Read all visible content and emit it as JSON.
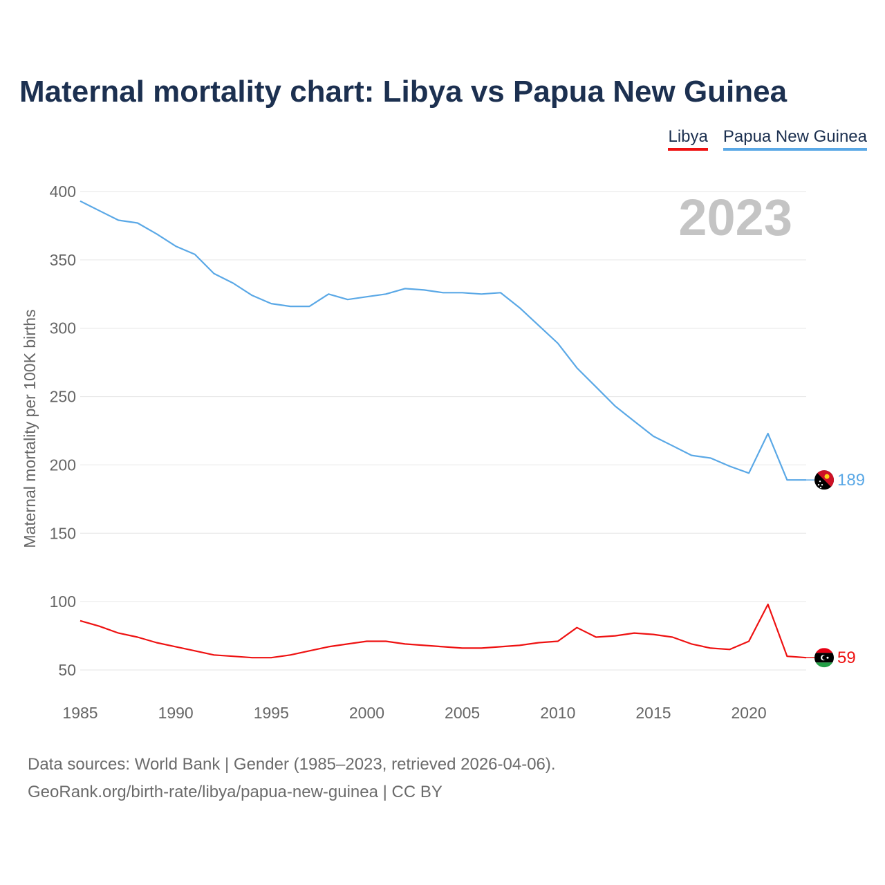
{
  "title": "Maternal mortality chart: Libya vs Papua New Guinea",
  "legend": {
    "libya": "Libya",
    "png": "Papua New Guinea"
  },
  "year_label": "2023",
  "colors": {
    "libya": "#ee1111",
    "png": "#5aa8e6",
    "title": "#1c3050"
  },
  "footer": {
    "line1": "Data sources: World Bank | Gender (1985–2023, retrieved 2026-04-06).",
    "line2": "GeoRank.org/birth-rate/libya/papua-new-guinea | CC BY"
  },
  "chart_data": {
    "type": "line",
    "title": "Maternal mortality chart: Libya vs Papua New Guinea",
    "xlabel": "",
    "ylabel": "Maternal mortality per 100K births",
    "xlim": [
      1985,
      2023
    ],
    "ylim": [
      30,
      410
    ],
    "yticks": [
      50,
      100,
      150,
      200,
      250,
      300,
      350,
      400
    ],
    "xticks": [
      1985,
      1990,
      1995,
      2000,
      2005,
      2010,
      2015,
      2020
    ],
    "grid": true,
    "legend_position": "top-right",
    "x": [
      1985,
      1986,
      1987,
      1988,
      1989,
      1990,
      1991,
      1992,
      1993,
      1994,
      1995,
      1996,
      1997,
      1998,
      1999,
      2000,
      2001,
      2002,
      2003,
      2004,
      2005,
      2006,
      2007,
      2008,
      2009,
      2010,
      2011,
      2012,
      2013,
      2014,
      2015,
      2016,
      2017,
      2018,
      2019,
      2020,
      2021,
      2022,
      2023
    ],
    "series": [
      {
        "name": "Papua New Guinea",
        "color": "#5aa8e6",
        "end_label": "189",
        "values": [
          393,
          386,
          379,
          377,
          369,
          360,
          354,
          340,
          333,
          324,
          318,
          316,
          316,
          325,
          321,
          323,
          325,
          329,
          328,
          326,
          326,
          325,
          326,
          315,
          302,
          289,
          271,
          257,
          243,
          232,
          221,
          214,
          207,
          205,
          199,
          194,
          223,
          189,
          189
        ]
      },
      {
        "name": "Libya",
        "color": "#ee1111",
        "end_label": "59",
        "values": [
          86,
          82,
          77,
          74,
          70,
          67,
          64,
          61,
          60,
          59,
          59,
          61,
          64,
          67,
          69,
          71,
          71,
          69,
          68,
          67,
          66,
          66,
          67,
          68,
          70,
          71,
          81,
          74,
          75,
          77,
          76,
          74,
          69,
          66,
          65,
          71,
          98,
          60,
          59
        ]
      }
    ]
  }
}
